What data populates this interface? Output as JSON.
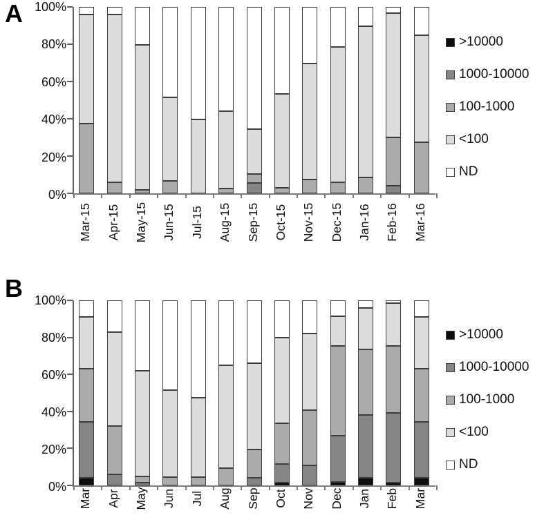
{
  "figure_title": "",
  "chart_data": [
    {
      "type": "bar",
      "stacked": true,
      "percent_scale": true,
      "panel_label": "A",
      "grid": false,
      "legend_position": "right",
      "ylim": [
        0,
        100
      ],
      "yticks": [
        {
          "pct": 0,
          "label": "0%"
        },
        {
          "pct": 20,
          "label": "20%"
        },
        {
          "pct": 40,
          "label": "40%"
        },
        {
          "pct": 60,
          "label": "60%"
        },
        {
          "pct": 80,
          "label": "80%"
        },
        {
          "pct": 100,
          "label": "100%"
        }
      ],
      "categories": [
        "Mar-15",
        "Apr-15",
        "May-15",
        "Jun-15",
        "Jul-15",
        "Aug-15",
        "Sep-15",
        "Oct-15",
        "Nov-15",
        "Dec-15",
        "Jan-16",
        "Feb-16",
        "Mar-16"
      ],
      "series": [
        {
          "name": ">10000",
          "color": "#0d0d0d",
          "values": [
            0,
            0,
            0,
            0,
            0,
            0,
            0,
            0,
            0,
            0,
            0,
            0,
            0
          ]
        },
        {
          "name": "1000-10000",
          "color": "#858585",
          "values": [
            0,
            0,
            0,
            0,
            0,
            0,
            5.5,
            0,
            0,
            0,
            0,
            4,
            0
          ]
        },
        {
          "name": "100-1000",
          "color": "#ababab",
          "values": [
            37.5,
            6,
            2,
            6.5,
            0,
            2.5,
            5,
            3,
            7.5,
            6,
            8.5,
            26,
            27.5
          ]
        },
        {
          "name": "<100",
          "color": "#dcdcdc",
          "values": [
            58.5,
            90,
            77.5,
            45,
            39.5,
            41.5,
            24,
            50.5,
            62,
            72.5,
            81,
            66.5,
            57.5
          ]
        },
        {
          "name": "ND",
          "color": "#ffffff",
          "values": [
            4,
            4,
            20.5,
            48.5,
            60.5,
            56,
            65.5,
            46.5,
            30.5,
            21.5,
            10.5,
            3.5,
            15
          ]
        }
      ]
    },
    {
      "type": "bar",
      "stacked": true,
      "percent_scale": true,
      "panel_label": "B",
      "grid": false,
      "legend_position": "right",
      "ylim": [
        0,
        100
      ],
      "yticks": [
        {
          "pct": 0,
          "label": "0%"
        },
        {
          "pct": 20,
          "label": "20%"
        },
        {
          "pct": 40,
          "label": "40%"
        },
        {
          "pct": 60,
          "label": "60%"
        },
        {
          "pct": 80,
          "label": "80%"
        },
        {
          "pct": 100,
          "label": "100%"
        }
      ],
      "categories": [
        "Mar",
        "Apr",
        "May",
        "Jun",
        "Jul",
        "Aug",
        "Sep",
        "Oct",
        "Nov",
        "Dec",
        "Jan",
        "Feb",
        "Mar"
      ],
      "series": [
        {
          "name": ">10000",
          "color": "#0d0d0d",
          "values": [
            4,
            0,
            0,
            0,
            0,
            0,
            0,
            1.5,
            0,
            2,
            4,
            1.5,
            4
          ]
        },
        {
          "name": "1000-10000",
          "color": "#858585",
          "values": [
            30.5,
            6,
            1.5,
            0,
            0,
            0,
            4,
            10,
            11,
            25,
            34,
            37.5,
            30.5
          ]
        },
        {
          "name": "100-1000",
          "color": "#ababab",
          "values": [
            28.5,
            26,
            3.5,
            4.5,
            4.5,
            9.5,
            15.5,
            22,
            29.5,
            48.5,
            35.5,
            36.5,
            28.5
          ]
        },
        {
          "name": "<100",
          "color": "#dcdcdc",
          "values": [
            28,
            51,
            57,
            47,
            43,
            55.5,
            46.5,
            46.5,
            41.5,
            16,
            22.5,
            23,
            28
          ]
        },
        {
          "name": "ND",
          "color": "#ffffff",
          "values": [
            9,
            17,
            38,
            48.5,
            52.5,
            35,
            34,
            20,
            18,
            8.5,
            4,
            1.5,
            9
          ]
        }
      ]
    }
  ]
}
